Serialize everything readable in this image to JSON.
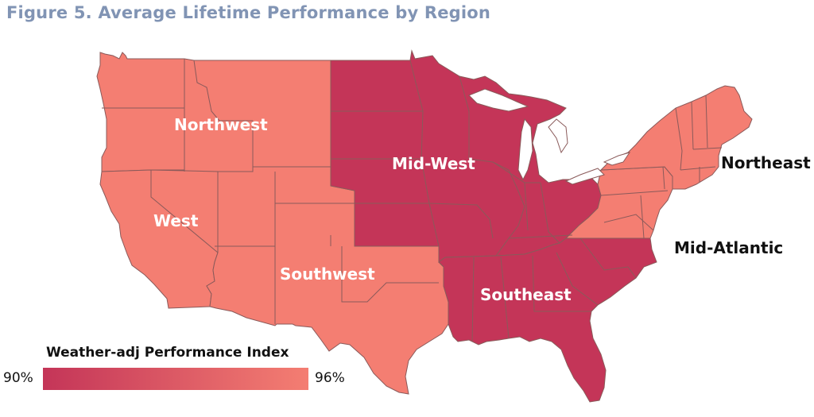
{
  "title": "Figure 5. Average Lifetime Performance by Region",
  "regions": [
    {
      "id": "northwest",
      "label": "Northwest",
      "index_pct": 96
    },
    {
      "id": "west",
      "label": "West",
      "index_pct": 96
    },
    {
      "id": "southwest",
      "label": "Southwest",
      "index_pct": 96
    },
    {
      "id": "midwest",
      "label": "Mid-West",
      "index_pct": 90
    },
    {
      "id": "southeast",
      "label": "Southeast",
      "index_pct": 90
    },
    {
      "id": "northeast",
      "label": "Northeast",
      "index_pct": 96
    },
    {
      "id": "midatlantic",
      "label": "Mid-Atlantic",
      "index_pct": 95
    }
  ],
  "legend": {
    "title": "Weather-adj Performance Index",
    "min_label": "90%",
    "max_label": "96%",
    "min_color": "#c43558",
    "max_color": "#f47e72"
  },
  "colors": {
    "high": "#f47e72",
    "low": "#c43558",
    "title": "#8194b4",
    "borders": "#8a5a5a"
  }
}
